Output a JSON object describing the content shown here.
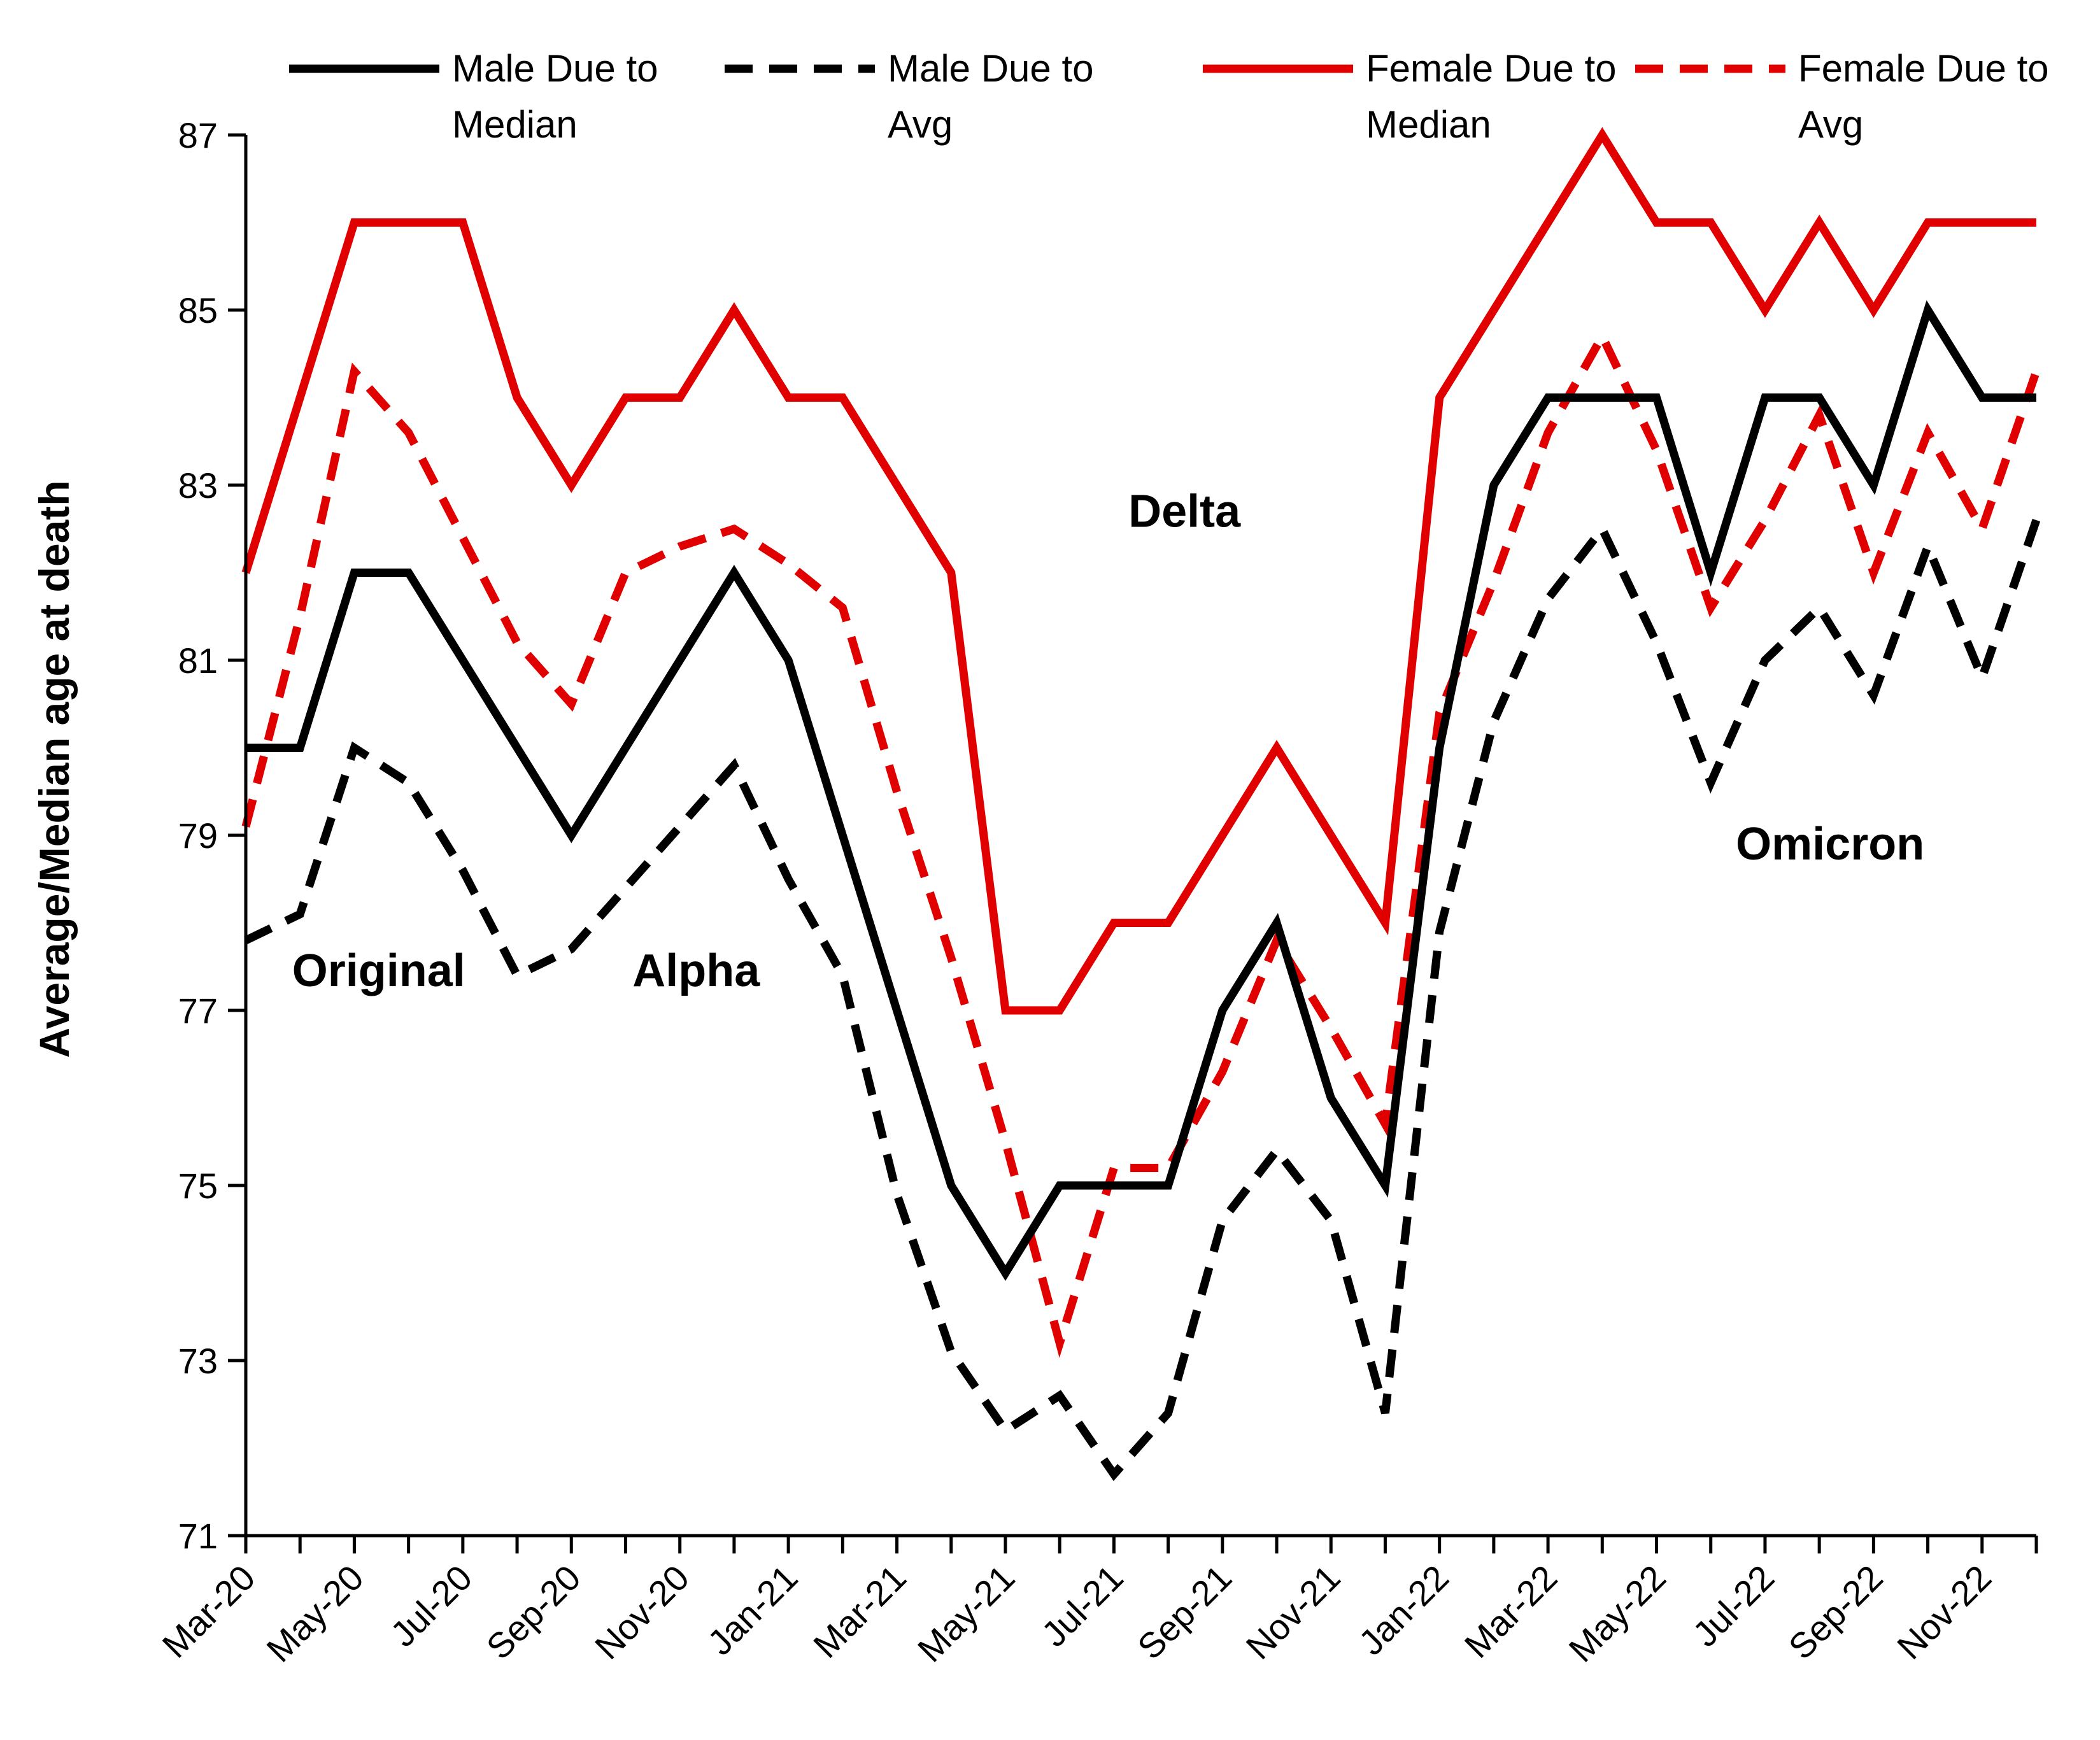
{
  "chart_data": {
    "type": "line",
    "ylabel": "Average/Median age at death",
    "xlabel": "",
    "ylim": [
      71,
      87
    ],
    "yticks": [
      71,
      73,
      75,
      77,
      79,
      81,
      83,
      85,
      87
    ],
    "x": [
      "Mar-20",
      "Apr-20",
      "May-20",
      "Jun-20",
      "Jul-20",
      "Aug-20",
      "Sep-20",
      "Oct-20",
      "Nov-20",
      "Dec-20",
      "Jan-21",
      "Feb-21",
      "Mar-21",
      "Apr-21",
      "May-21",
      "Jun-21",
      "Jul-21",
      "Aug-21",
      "Sep-21",
      "Oct-21",
      "Nov-21",
      "Dec-21",
      "Jan-22",
      "Feb-22",
      "Mar-22",
      "Apr-22",
      "May-22",
      "Jun-22",
      "Jul-22",
      "Aug-22",
      "Sep-22",
      "Oct-22",
      "Nov-22",
      "Dec-22"
    ],
    "xtick_labels": [
      "Mar-20",
      "May-20",
      "Jul-20",
      "Sep-20",
      "Nov-20",
      "Jan-21",
      "Mar-21",
      "May-21",
      "Jul-21",
      "Sep-21",
      "Nov-21",
      "Jan-22",
      "Mar-22",
      "May-22",
      "Jul-22",
      "Sep-22",
      "Nov-22"
    ],
    "legend_position": "top",
    "series": [
      {
        "name": "Male Due to Median",
        "color": "#000000",
        "dash": "solid",
        "values": [
          80,
          80,
          82,
          82,
          81,
          80,
          79,
          80,
          81,
          82,
          81,
          79,
          77,
          75,
          74,
          75,
          75,
          75,
          77,
          78,
          76,
          75,
          80,
          83,
          84,
          84,
          84,
          82,
          84,
          84,
          83,
          85,
          84,
          84
        ]
      },
      {
        "name": "Male Due to Avg",
        "color": "#000000",
        "dash": "dashed",
        "values": [
          77.8,
          78.1,
          80.0,
          79.6,
          78.6,
          77.4,
          77.7,
          78.4,
          79.1,
          79.8,
          78.5,
          77.4,
          74.9,
          73.1,
          72.2,
          72.6,
          71.7,
          72.4,
          74.6,
          75.4,
          74.6,
          72.4,
          77.9,
          80.3,
          81.7,
          82.5,
          81.2,
          79.6,
          81.0,
          81.6,
          80.6,
          82.3,
          80.8,
          82.6
        ]
      },
      {
        "name": "Female Due to Median",
        "color": "#e10000",
        "dash": "solid",
        "values": [
          82,
          84,
          86,
          86,
          86,
          84,
          83,
          84,
          84,
          85,
          84,
          84,
          83,
          82,
          77,
          77,
          78,
          78,
          79,
          80,
          79,
          78,
          84,
          85,
          86,
          87,
          86,
          86,
          85,
          86,
          85,
          86,
          86,
          86
        ]
      },
      {
        "name": "Female Due to Avg",
        "color": "#e10000",
        "dash": "dashed",
        "values": [
          79.1,
          81.5,
          84.3,
          83.6,
          82.4,
          81.2,
          80.5,
          82.0,
          82.3,
          82.5,
          82.1,
          81.6,
          79.5,
          77.6,
          75.5,
          73.2,
          75.2,
          75.2,
          76.3,
          77.8,
          76.8,
          75.7,
          80.4,
          81.9,
          83.6,
          84.7,
          83.4,
          81.6,
          82.6,
          83.8,
          82.0,
          83.6,
          82.5,
          84.3
        ]
      }
    ],
    "annotations": [
      {
        "text": "Original",
        "x_index": 2.45,
        "y": 77.45
      },
      {
        "text": "Alpha",
        "x_index": 8.3,
        "y": 77.45
      },
      {
        "text": "Delta",
        "x_index": 17.3,
        "y": 82.7
      },
      {
        "text": "Omicron",
        "x_index": 29.2,
        "y": 78.9
      }
    ]
  }
}
